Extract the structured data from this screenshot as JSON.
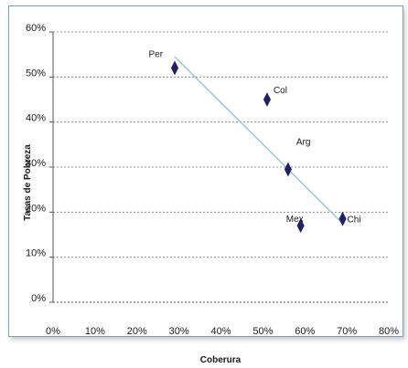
{
  "chart_data": {
    "type": "scatter",
    "title": "",
    "xlabel": "Coberura",
    "ylabel": "Tasas de Pobreza",
    "xlim": [
      0,
      80
    ],
    "ylim": [
      0,
      60
    ],
    "x_ticks": [
      "0%",
      "10%",
      "20%",
      "30%",
      "40%",
      "50%",
      "60%",
      "70%",
      "80%"
    ],
    "y_ticks": [
      "0%",
      "10%",
      "20%",
      "30%",
      "40%",
      "50%",
      "60%"
    ],
    "grid": "horizontal dashed",
    "marker": "diamond",
    "marker_color": "#1f1f6e",
    "trendline_color": "#9cc8ea",
    "points": [
      {
        "label": "Per",
        "x": 29,
        "y": 52
      },
      {
        "label": "Col",
        "x": 51,
        "y": 45
      },
      {
        "label": "Arg",
        "x": 56,
        "y": 29.5
      },
      {
        "label": "Mex",
        "x": 59,
        "y": 17
      },
      {
        "label": "Chi",
        "x": 69,
        "y": 18.5
      }
    ],
    "trendline": [
      {
        "x": 29,
        "y": 54.5
      },
      {
        "x": 69,
        "y": 17.5
      }
    ]
  }
}
